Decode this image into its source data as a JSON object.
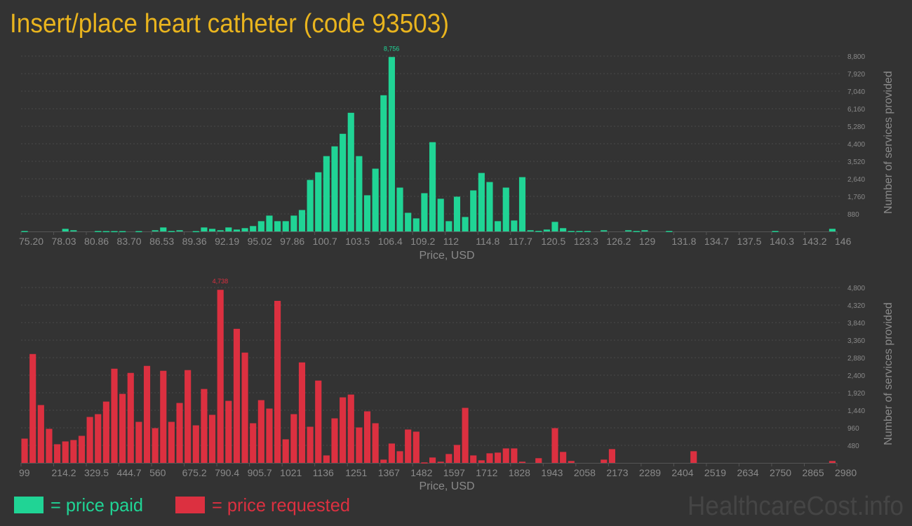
{
  "title": "Insert/place heart catheter (code 93503)",
  "colors": {
    "paid": "#20d495",
    "requested": "#dc3040",
    "title": "#e9b41e",
    "background": "#333333"
  },
  "legend": {
    "paid": "= price paid",
    "requested": "= price requested"
  },
  "watermark": "HealthcareCost.info",
  "chart_data": [
    {
      "type": "bar",
      "name": "price paid",
      "xlabel": "Price, USD",
      "ylabel": "Number of services provided",
      "xlim": [
        75.2,
        146
      ],
      "ylim": [
        0,
        8800
      ],
      "grid": true,
      "xticks": [
        "75.20",
        "78.03",
        "80.86",
        "83.70",
        "86.53",
        "89.36",
        "92.19",
        "95.02",
        "97.86",
        "100.7",
        "103.5",
        "106.4",
        "109.2",
        "112",
        "114.8",
        "117.7",
        "120.5",
        "123.3",
        "126.2",
        "129",
        "131.8",
        "134.7",
        "137.5",
        "140.3",
        "143.2",
        "146"
      ],
      "yticks": [
        "880",
        "1,760",
        "2,640",
        "3,520",
        "4,400",
        "5,280",
        "6,160",
        "7,040",
        "7,920",
        "8,800"
      ],
      "ytick_values": [
        880,
        1760,
        2640,
        3520,
        4400,
        5280,
        6160,
        7040,
        7920,
        8800
      ],
      "peak_label": "8,756",
      "values": [
        20,
        0,
        0,
        0,
        0,
        130,
        60,
        0,
        0,
        20,
        15,
        15,
        15,
        0,
        15,
        0,
        60,
        200,
        20,
        60,
        0,
        15,
        200,
        130,
        60,
        200,
        95,
        165,
        270,
        515,
        795,
        515,
        515,
        795,
        1075,
        2585,
        2970,
        3780,
        4270,
        4900,
        5955,
        3780,
        1815,
        3150,
        6835,
        8756,
        2200,
        935,
        655,
        1920,
        4480,
        1640,
        515,
        1745,
        725,
        2060,
        2935,
        2480,
        515,
        2200,
        550,
        2725,
        60,
        25,
        95,
        480,
        165,
        20,
        20,
        20,
        0,
        60,
        0,
        0,
        60,
        20,
        60,
        0,
        0,
        20,
        0,
        0,
        0,
        0,
        0,
        0,
        0,
        0,
        0,
        0,
        0,
        0,
        20,
        0,
        0,
        0,
        0,
        0,
        0,
        130
      ]
    },
    {
      "type": "bar",
      "name": "price requested",
      "xlabel": "Price, USD",
      "ylabel": "Number of services provided",
      "xlim": [
        99,
        2980
      ],
      "ylim": [
        0,
        4800
      ],
      "grid": true,
      "xticks": [
        "99",
        "214.2",
        "329.5",
        "444.7",
        "560",
        "675.2",
        "790.4",
        "905.7",
        "1021",
        "1136",
        "1251",
        "1367",
        "1482",
        "1597",
        "1712",
        "1828",
        "1943",
        "2058",
        "2173",
        "2289",
        "2404",
        "2519",
        "2634",
        "2750",
        "2865",
        "2980"
      ],
      "yticks": [
        "480",
        "960",
        "1,440",
        "1,920",
        "2,400",
        "2,880",
        "3,360",
        "3,840",
        "4,320",
        "4,800"
      ],
      "ytick_values": [
        480,
        960,
        1440,
        1920,
        2400,
        2880,
        3360,
        3840,
        4320,
        4800
      ],
      "peak_label": "4,738",
      "values": [
        664,
        2980,
        1583,
        932,
        510,
        587,
        625,
        740,
        1257,
        1334,
        1678,
        2578,
        1889,
        2463,
        1123,
        2655,
        951,
        2521,
        1123,
        1640,
        2540,
        1027,
        2023,
        1315,
        4738,
        1698,
        3670,
        3019,
        1085,
        1717,
        1487,
        4436,
        645,
        1334,
        2750,
        989,
        2253,
        204,
        1219,
        1794,
        1870,
        970,
        1411,
        1085,
        89,
        530,
        319,
        913,
        855,
        13,
        147,
        32,
        243,
        491,
        1506,
        204,
        70,
        262,
        281,
        396,
        396,
        32,
        0,
        128,
        0,
        951,
        300,
        51,
        0,
        0,
        0,
        89,
        377,
        0,
        0,
        0,
        0,
        0,
        0,
        0,
        0,
        0,
        319,
        0,
        0,
        0,
        0,
        0,
        0,
        0,
        0,
        0,
        0,
        0,
        0,
        0,
        0,
        0,
        0,
        51
      ]
    }
  ]
}
